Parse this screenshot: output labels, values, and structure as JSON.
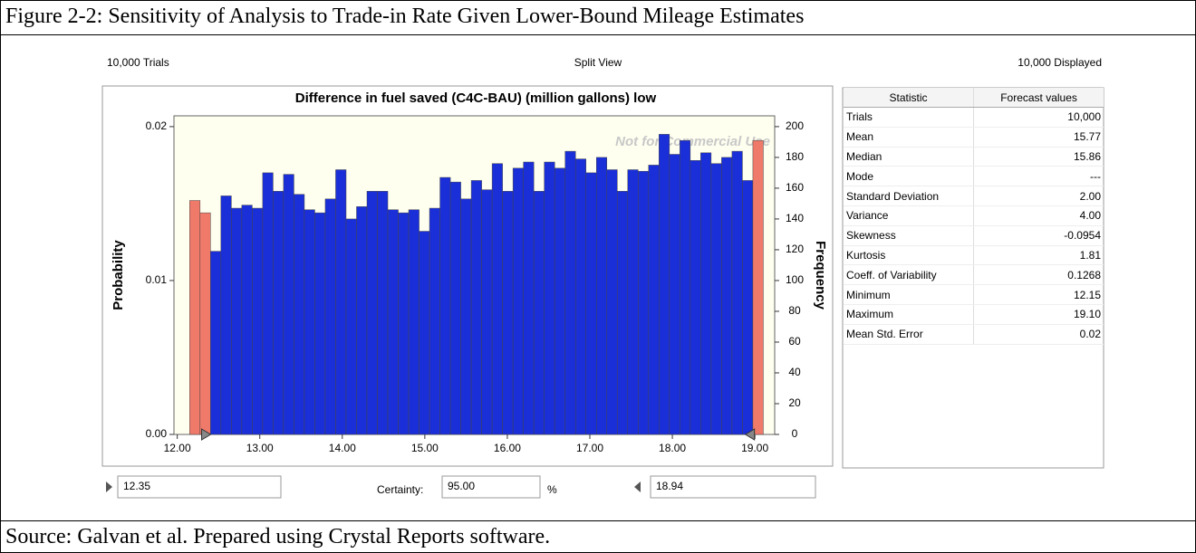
{
  "caption": "Figure 2-2: Sensitivity of Analysis to Trade-in Rate Given Lower-Bound Mileage Estimates",
  "source": "Source: Galvan et al. Prepared using Crystal Reports software.",
  "header": {
    "left": "10,000 Trials",
    "center": "Split View",
    "right": "10,000 Displayed"
  },
  "chart_data": {
    "type": "histogram",
    "title": "Difference in fuel saved (C4C-BAU) (million gallons) low",
    "watermark": "Not for Commercial Use",
    "ylabel": "Frequency",
    "y2label": "Probability",
    "bins": [
      12.15,
      12.2764,
      12.4028,
      12.5292,
      12.6556,
      12.782,
      12.9084,
      13.0348,
      13.1612,
      13.2876,
      13.414,
      13.5404,
      13.6668,
      13.7932,
      13.9196,
      14.046,
      14.1724,
      14.2988,
      14.4252,
      14.5516,
      14.678,
      14.8044,
      14.9308,
      15.0572,
      15.1836,
      15.31,
      15.4364,
      15.5628,
      15.6892,
      15.8156,
      15.942,
      16.0684,
      16.1948,
      16.3212,
      16.4476,
      16.574,
      16.7004,
      16.8268,
      16.9532,
      17.0796,
      17.206,
      17.3324,
      17.4588,
      17.5852,
      17.7116,
      17.838,
      17.9644,
      18.0908,
      18.2172,
      18.3436,
      18.47,
      18.5964,
      18.7228,
      18.8492,
      18.9756,
      19.102
    ],
    "counts": [
      152,
      144,
      119,
      155,
      147,
      149,
      147,
      170,
      158,
      169,
      156,
      146,
      144,
      153,
      172,
      140,
      148,
      158,
      158,
      146,
      144,
      146,
      132,
      147,
      167,
      164,
      153,
      165,
      159,
      176,
      158,
      173,
      177,
      158,
      177,
      173,
      184,
      179,
      170,
      180,
      172,
      158,
      172,
      171,
      175,
      195,
      182,
      191,
      178,
      183,
      176,
      180,
      184,
      165,
      191
    ],
    "color": "#1a2fd8",
    "outside_color": "#f07a6a",
    "xlim": [
      11.96,
      19.24
    ],
    "xticks": [
      {
        "value": 12,
        "label": "12.00"
      },
      {
        "value": 13,
        "label": "13.00"
      },
      {
        "value": 14,
        "label": "14.00"
      },
      {
        "value": 15,
        "label": "15.00"
      },
      {
        "value": 16,
        "label": "16.00"
      },
      {
        "value": 17,
        "label": "17.00"
      },
      {
        "value": 18,
        "label": "18.00"
      },
      {
        "value": 19,
        "label": "19.00"
      }
    ],
    "ylim": [
      0,
      207
    ],
    "yticks": [
      0,
      20,
      40,
      60,
      80,
      100,
      120,
      140,
      160,
      180,
      200
    ],
    "y2lim": [
      0,
      0.0207
    ],
    "y2ticks": [
      {
        "value": 0,
        "label": "0.00"
      },
      {
        "value": 0.01,
        "label": "0.01"
      },
      {
        "value": 0.02,
        "label": "0.02"
      }
    ],
    "certainty": {
      "lower": 12.35,
      "label": "Certainty:",
      "value": "95.00",
      "unit": "%",
      "upper": 18.94
    }
  },
  "stats": {
    "header": [
      "Statistic",
      "Forecast values"
    ],
    "rows": [
      [
        "Trials",
        "10,000"
      ],
      [
        "Mean",
        "15.77"
      ],
      [
        "Median",
        "15.86"
      ],
      [
        "Mode",
        "---"
      ],
      [
        "Standard Deviation",
        "2.00"
      ],
      [
        "Variance",
        "4.00"
      ],
      [
        "Skewness",
        "-0.0954"
      ],
      [
        "Kurtosis",
        "1.81"
      ],
      [
        "Coeff. of Variability",
        "0.1268"
      ],
      [
        "Minimum",
        "12.15"
      ],
      [
        "Maximum",
        "19.10"
      ],
      [
        "Mean Std. Error",
        "0.02"
      ]
    ]
  }
}
